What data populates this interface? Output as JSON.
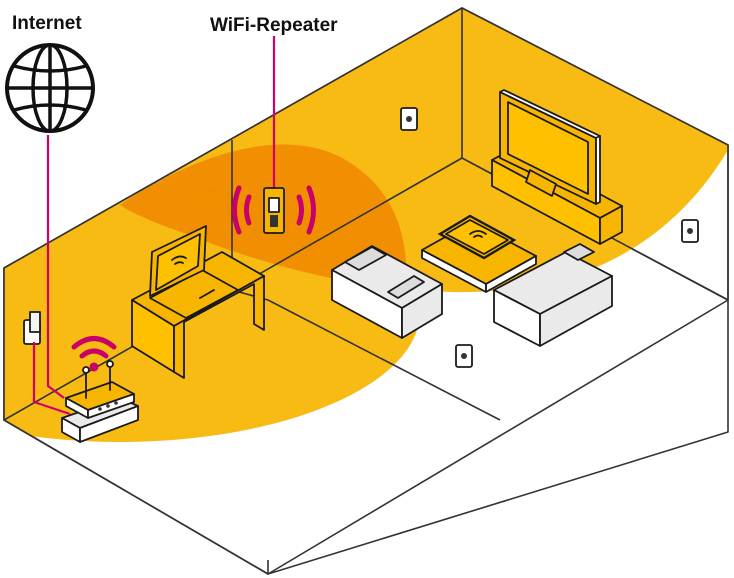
{
  "labels": {
    "internet": "Internet",
    "repeater": "WiFi-Repeater"
  },
  "colors": {
    "coverage_outer": "#f7b500",
    "coverage_overlap": "#ef8a00",
    "floor_white": "#ffffff",
    "wall_grey": "#e3e3e3",
    "signal_magenta": "#c8006a",
    "outline": "#333333"
  },
  "icons": [
    "globe-icon",
    "router-icon",
    "wifi-repeater-icon",
    "laptop-icon",
    "tablet-icon",
    "tv-icon",
    "sofa-icon",
    "power-socket-icon",
    "wifi-signal-icon"
  ]
}
